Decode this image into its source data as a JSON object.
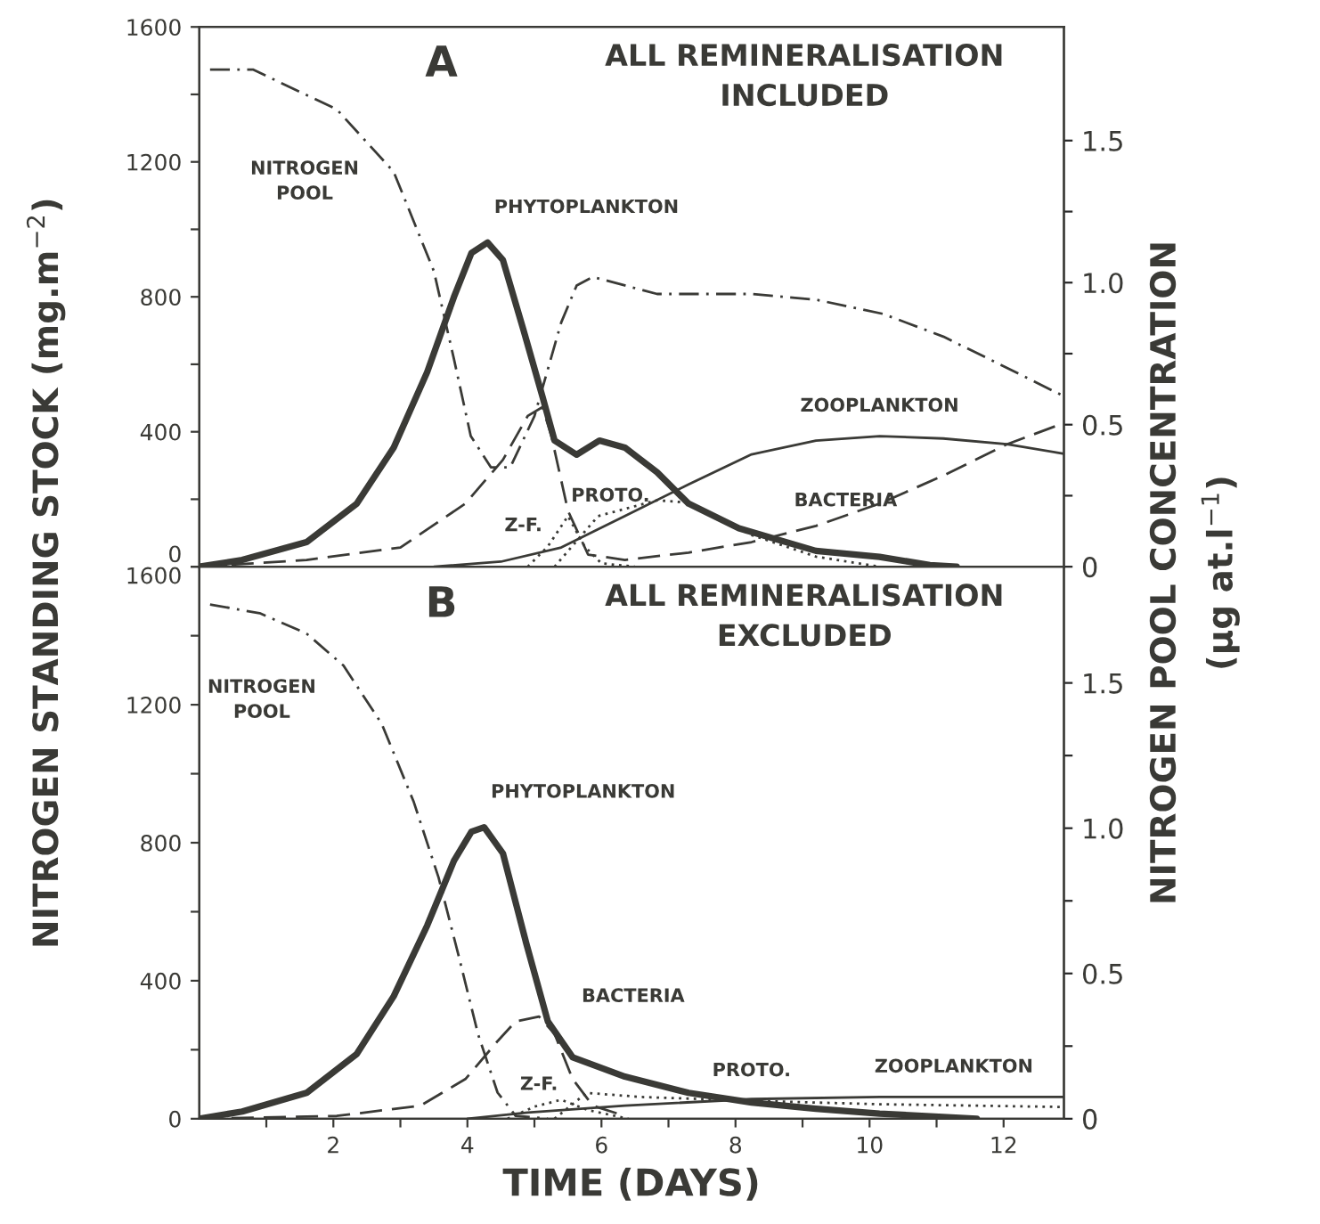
{
  "chart_data": [
    {
      "type": "line",
      "title": "A",
      "subtitle": "ALL REMINERALISATION\nINCLUDED",
      "ylabel": "NITROGEN STANDING STOCK (mg.m$^{−2}$)",
      "y2label": "NITROGEN POOL CONCENTRATION\n(µg at.l$^{−1}$)",
      "xlim": [
        0,
        12.9
      ],
      "xticks": [
        {
          "value": 1,
          "label": null
        },
        2,
        {
          "value": 3,
          "label": null
        },
        4,
        {
          "value": 5,
          "label": null
        },
        6,
        {
          "value": 7,
          "label": null
        },
        8,
        {
          "value": 9,
          "label": null
        },
        10,
        {
          "value": 11,
          "label": null
        },
        12
      ],
      "ylim": [
        0,
        1600
      ],
      "yticks": [
        0,
        {
          "value": 200,
          "label": null
        },
        400,
        {
          "value": 600,
          "label": null
        },
        800,
        {
          "value": 1000,
          "label": null
        },
        1200,
        {
          "value": 1400,
          "label": null
        },
        1600
      ],
      "y2lim": [
        0,
        1.9
      ],
      "y2ticks": [
        0,
        {
          "value": 0.25,
          "label": null
        },
        0.5,
        {
          "value": 0.75,
          "label": null
        },
        {
          "value": 1,
          "label": "1.0"
        },
        {
          "value": 1.25,
          "label": null
        },
        1.5
      ],
      "tick_labels": "y",
      "series": [
        {
          "name": "PHYTOPLANKTON",
          "color": "#3a3a36",
          "line_style": "solid",
          "x": [
            0,
            0.64,
            1.6,
            2.35,
            2.9,
            3.4,
            3.8,
            4.06,
            4.3,
            4.53,
            4.83,
            5.12,
            5.3,
            5.63,
            5.97,
            6.35,
            6.83,
            7.3,
            8.05,
            9.2,
            10.15,
            10.9,
            11.3
          ],
          "values": [
            0,
            20,
            73,
            187,
            353,
            577,
            800,
            930,
            961,
            909,
            706,
            504,
            374,
            332,
            374,
            353,
            280,
            187,
            114,
            47,
            29,
            5,
            0
          ]
        },
        {
          "name": "NITROGEN\nPOOL",
          "color": "#3a3a36",
          "line_style": "dashdot",
          "axis": "y2",
          "x": [
            0.16,
            0.8,
            2.05,
            2.9,
            3.5,
            3.8,
            4.05,
            4.35,
            4.64,
            5.0,
            5.4,
            5.63,
            5.87,
            6.35,
            6.83,
            8.24,
            9.2,
            10.2,
            11.1,
            12.05,
            12.9
          ],
          "values": [
            1.75,
            1.75,
            1.61,
            1.39,
            1.04,
            0.73,
            0.46,
            0.35,
            0.35,
            0.53,
            0.86,
            0.99,
            1.02,
            0.99,
            0.96,
            0.96,
            0.94,
            0.89,
            0.81,
            0.7,
            0.6
          ]
        },
        {
          "name": "ZOOPLANKTON",
          "color": "#3a3a36",
          "line_style": "solid",
          "x": [
            3.5,
            4.5,
            5.4,
            6.35,
            7.3,
            8.24,
            9.2,
            10.15,
            11.1,
            12.05,
            12.9
          ],
          "values": [
            0,
            15,
            57,
            150,
            244,
            333,
            374,
            387,
            380,
            363,
            335
          ]
        },
        {
          "name": "BACTERIA",
          "color": "#3a3a36",
          "line_style": "dashed",
          "x": [
            0,
            1.6,
            3.0,
            3.97,
            4.53,
            4.9,
            5.12,
            5.25,
            5.5,
            5.8,
            6.35,
            7.3,
            8.24,
            9.2,
            10.15,
            11.1,
            12.05,
            12.9
          ],
          "values": [
            0,
            20,
            57,
            187,
            317,
            447,
            473,
            390,
            166,
            36,
            20,
            42,
            73,
            121,
            187,
            270,
            363,
            426
          ]
        },
        {
          "name": "PROTO.",
          "color": "#3a3a36",
          "line_style": "dotted",
          "x": [
            5.3,
            5.95,
            6.83,
            7.3,
            8.24,
            9.2,
            10.15
          ],
          "values": [
            0,
            150,
            197,
            190,
            94,
            30,
            0
          ]
        },
        {
          "name": "Z-F.",
          "color": "#3a3a36",
          "line_style": "dotted",
          "x": [
            4.9,
            5.2,
            5.5,
            5.75,
            6.0,
            6.5
          ],
          "values": [
            0,
            60,
            150,
            60,
            10,
            0
          ]
        }
      ]
    },
    {
      "type": "line",
      "title": "B",
      "subtitle": "ALL REMINERALISATION\nEXCLUDED",
      "xlabel": "TIME (DAYS)",
      "xlim": [
        0,
        12.9
      ],
      "xticks": [
        {
          "value": 1,
          "label": null
        },
        2,
        {
          "value": 3,
          "label": null
        },
        4,
        {
          "value": 5,
          "label": null
        },
        6,
        {
          "value": 7,
          "label": null
        },
        8,
        {
          "value": 9,
          "label": null
        },
        10,
        {
          "value": 11,
          "label": null
        },
        12
      ],
      "ylim": [
        0,
        1600
      ],
      "yticks": [
        0,
        {
          "value": 200,
          "label": null
        },
        400,
        {
          "value": 600,
          "label": null
        },
        800,
        {
          "value": 1000,
          "label": null
        },
        1200,
        {
          "value": 1400,
          "label": null
        },
        1600
      ],
      "y2lim": [
        0,
        1.9
      ],
      "y2ticks": [
        0,
        {
          "value": 0.25,
          "label": null
        },
        0.5,
        {
          "value": 0.75,
          "label": null
        },
        {
          "value": 1,
          "label": "1.0"
        },
        {
          "value": 1.25,
          "label": null
        },
        1.5
      ],
      "series": [
        {
          "name": "PHYTOPLANKTON",
          "color": "#3a3a36",
          "line_style": "solid",
          "x": [
            0,
            0.64,
            1.6,
            2.35,
            2.9,
            3.4,
            3.8,
            4.06,
            4.25,
            4.53,
            4.88,
            5.2,
            5.57,
            6.35,
            7.3,
            8.24,
            9.2,
            10.15,
            11.6
          ],
          "values": [
            0,
            21,
            75,
            188,
            355,
            560,
            748,
            832,
            845,
            769,
            507,
            282,
            178,
            122,
            75,
            47,
            29,
            15,
            0
          ]
        },
        {
          "name": "NITROGEN\nPOOL",
          "color": "#3a3a36",
          "line_style": "dashdot",
          "axis": "y2",
          "x": [
            0.16,
            0.9,
            1.6,
            2.15,
            2.72,
            3.2,
            3.57,
            3.87,
            4.16,
            4.45,
            4.72,
            5.2
          ],
          "values": [
            1.77,
            1.74,
            1.67,
            1.56,
            1.36,
            1.09,
            0.83,
            0.56,
            0.29,
            0.09,
            0.01,
            0
          ]
        },
        {
          "name": "BACTERIA",
          "color": "#3a3a36",
          "line_style": "dashed",
          "x": [
            0,
            2.05,
            3.3,
            3.97,
            4.45,
            4.72,
            5.07,
            5.3,
            5.57,
            5.87,
            6.35
          ],
          "values": [
            0,
            8,
            38,
            115,
            225,
            282,
            296,
            246,
            115,
            38,
            8
          ]
        },
        {
          "name": "Z-F.",
          "color": "#3a3a36",
          "line_style": "dotted",
          "x": [
            4.6,
            5.0,
            5.4,
            5.8,
            6.4
          ],
          "values": [
            0,
            35,
            55,
            25,
            0
          ]
        },
        {
          "name": "PROTO.",
          "color": "#3a3a36",
          "line_style": "dotted",
          "x": [
            5.3,
            5.78,
            6.6,
            8.24,
            10.15,
            12.9
          ],
          "values": [
            0,
            75,
            63,
            52,
            42,
            34
          ]
        },
        {
          "name": "ZOOPLANKTON",
          "color": "#3a3a36",
          "line_style": "solid",
          "x": [
            4.0,
            4.9,
            6.35,
            8.24,
            10.15,
            12.9
          ],
          "values": [
            0,
            18,
            38,
            57,
            63,
            63
          ]
        }
      ]
    }
  ]
}
